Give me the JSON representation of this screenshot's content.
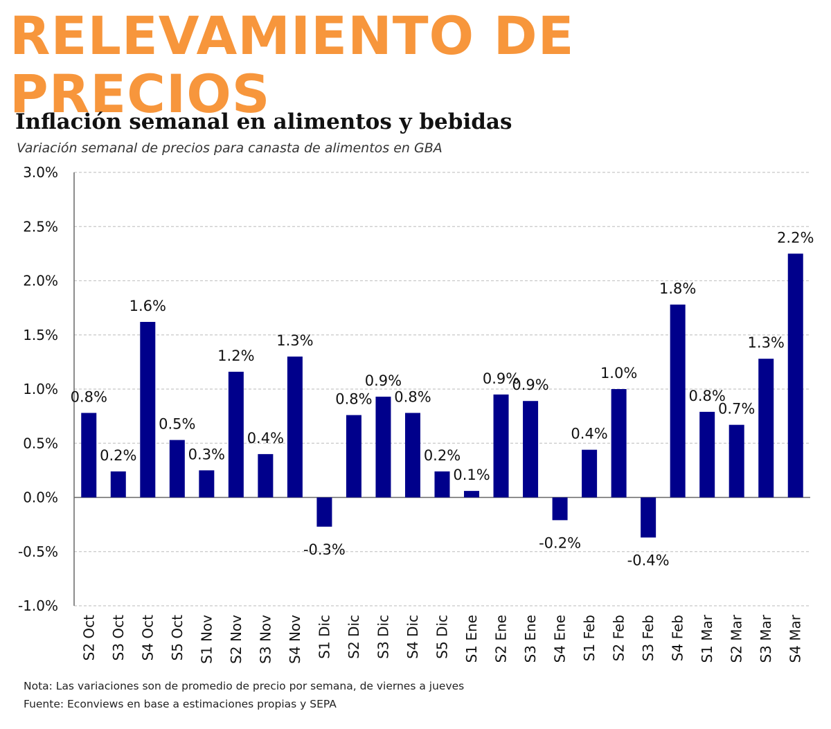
{
  "page": {
    "banner": "RELEVAMIENTO DE PRECIOS",
    "note": "Nota: Las variaciones son de promedio de precio por semana, de viernes a jueves",
    "source": "Fuente: Econviews en base a estimaciones propias y SEPA"
  },
  "colors": {
    "banner": "#F7963C",
    "bar": "#00008B",
    "highlight": "#F7963C",
    "grid": "#C8C8C8",
    "axis": "#666666"
  },
  "chart_data": {
    "type": "bar",
    "title": "Inflación semanal en alimentos y bebidas",
    "subtitle": "Variación semanal de precios para canasta de alimentos en GBA",
    "xlabel": "",
    "ylabel": "",
    "ylim": [
      -1.0,
      3.0
    ],
    "yticks": [
      "3.0%",
      "2.5%",
      "2.0%",
      "1.5%",
      "1.0%",
      "0.5%",
      "0.0%",
      "-0.5%",
      "-1.0%"
    ],
    "ytick_values": [
      3.0,
      2.5,
      2.0,
      1.5,
      1.0,
      0.5,
      0.0,
      -0.5,
      -1.0
    ],
    "grid": true,
    "legend": "none",
    "highlight_index": 25,
    "categories": [
      "S2 Oct",
      "S3 Oct",
      "S4 Oct",
      "S5 Oct",
      "S1 Nov",
      "S2 Nov",
      "S3 Nov",
      "S4 Nov",
      "S1 Dic",
      "S2 Dic",
      "S3 Dic",
      "S4 Dic",
      "S5 Dic",
      "S1 Ene",
      "S2 Ene",
      "S3 Ene",
      "S4 Ene",
      "S1 Feb",
      "S2 Feb",
      "S3 Feb",
      "S4 Feb",
      "S1 Mar",
      "S2 Mar",
      "S3 Mar",
      "S4 Mar"
    ],
    "values": [
      0.78,
      0.24,
      1.62,
      0.53,
      0.25,
      1.16,
      0.4,
      1.3,
      -0.27,
      0.76,
      0.93,
      0.78,
      0.24,
      0.06,
      0.95,
      0.89,
      -0.21,
      0.44,
      1.0,
      -0.37,
      1.78,
      0.79,
      0.67,
      1.28,
      2.25
    ],
    "data_labels": [
      "0.8%",
      "0.2%",
      "1.6%",
      "0.5%",
      "0.3%",
      "1.2%",
      "0.4%",
      "1.3%",
      "-0.3%",
      "0.8%",
      "0.9%",
      "0.8%",
      "0.2%",
      "0.1%",
      "0.9%",
      "0.9%",
      "-0.2%",
      "0.4%",
      "1.0%",
      "-0.4%",
      "1.8%",
      "0.8%",
      "0.7%",
      "1.3%",
      "2.2%"
    ]
  }
}
